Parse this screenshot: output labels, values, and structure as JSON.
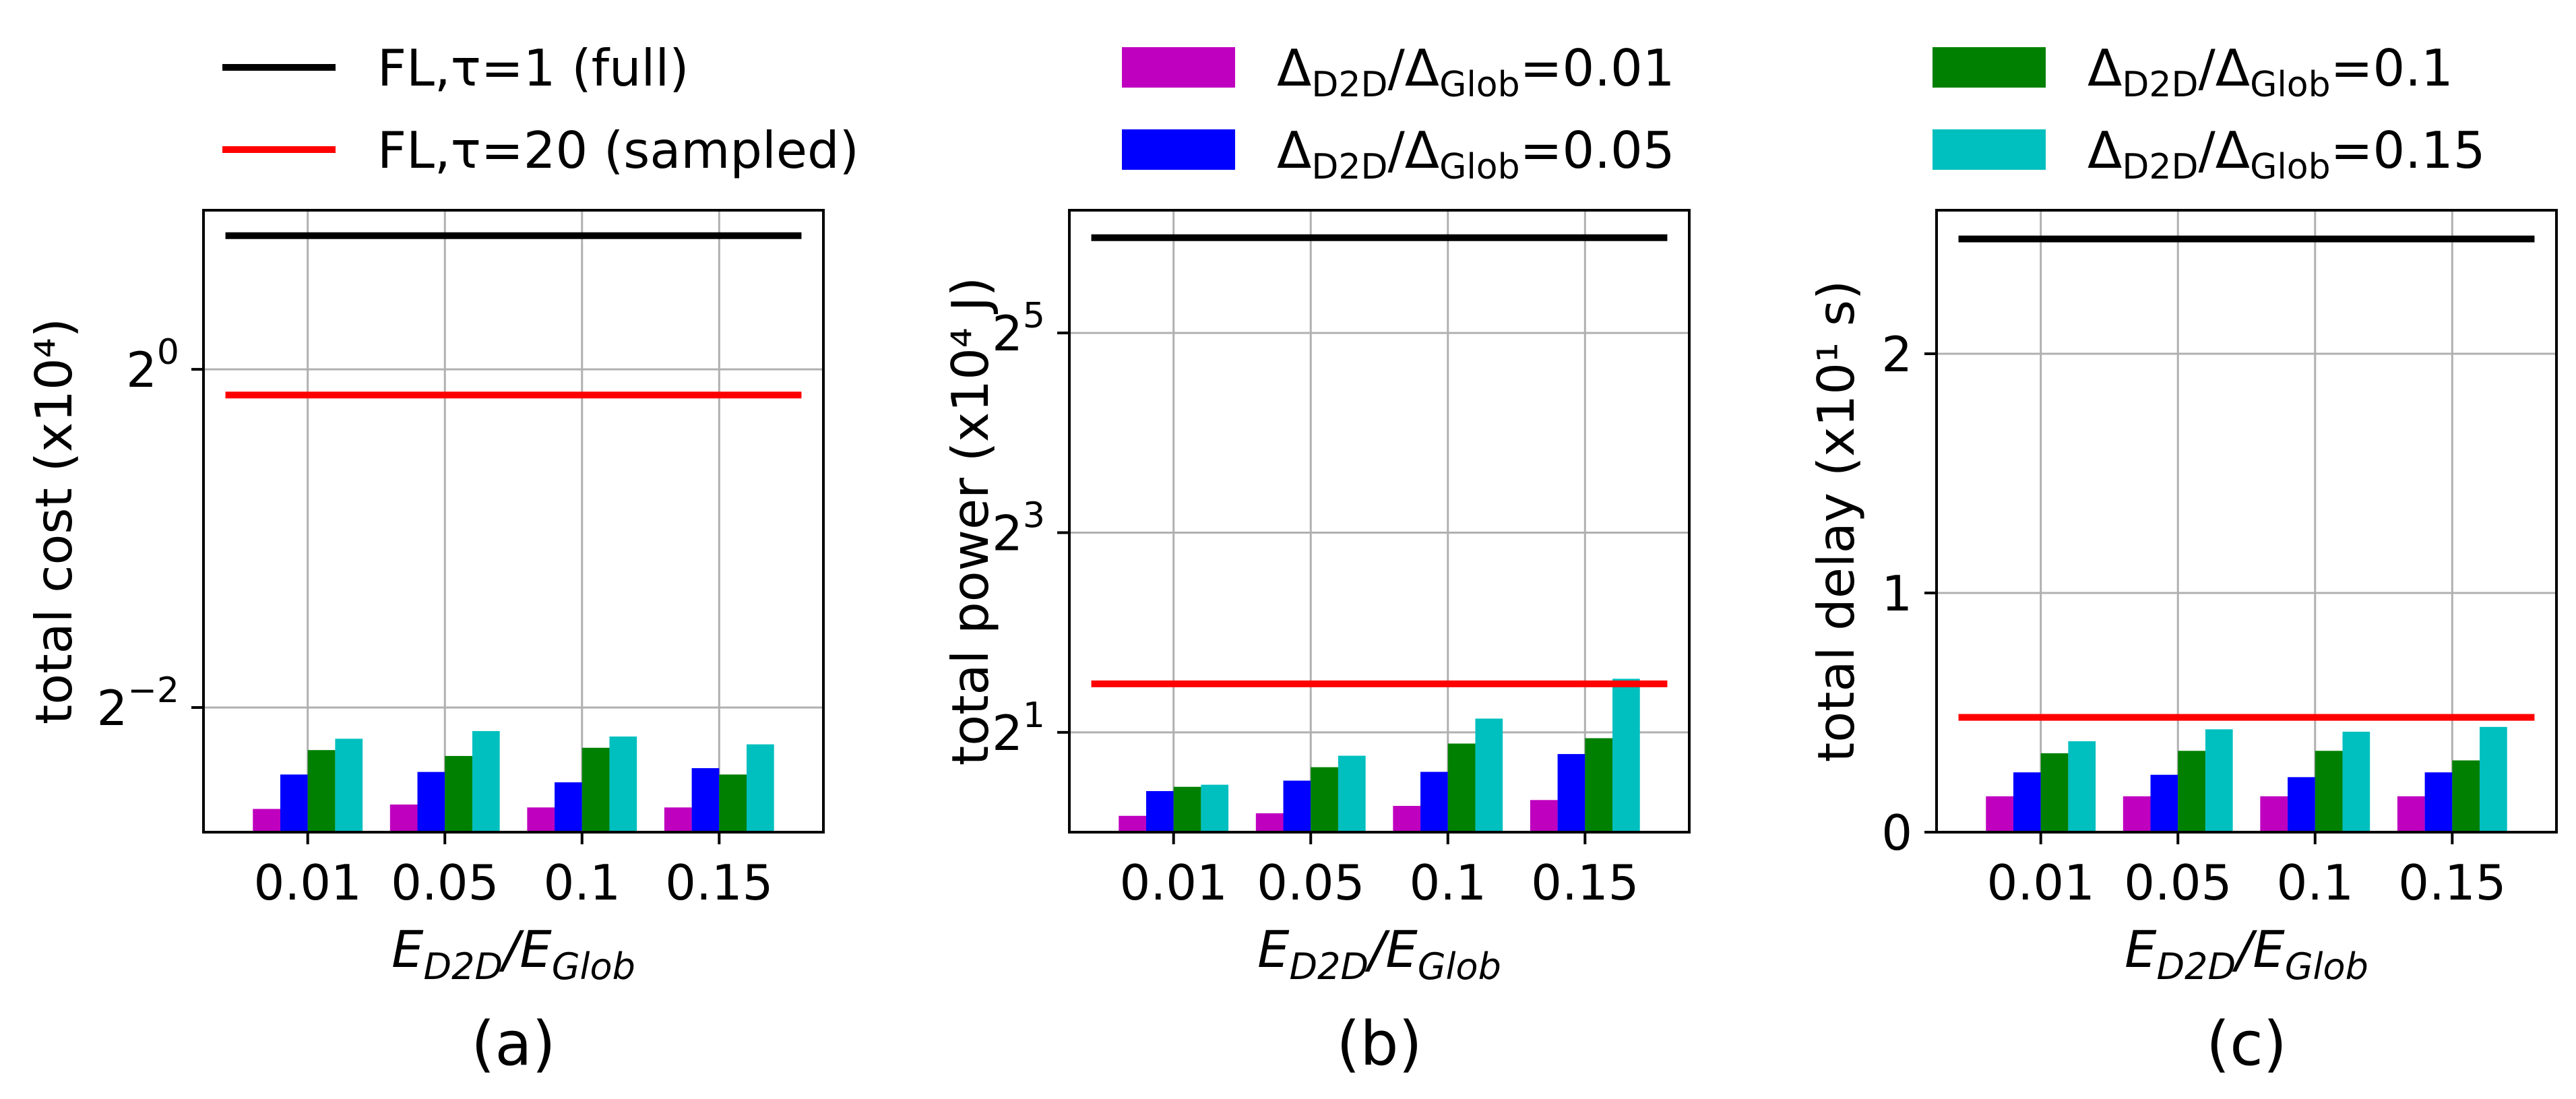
{
  "legend": {
    "lines": [
      {
        "name": "FL,τ=1 (full)",
        "color": "#000000"
      },
      {
        "name": "FL,τ=20 (sampled)",
        "color": "#ff0000"
      }
    ],
    "bars": [
      {
        "ratio": "0.01",
        "color": "#bf00bf"
      },
      {
        "ratio": "0.05",
        "color": "#0000ff"
      },
      {
        "ratio": "0.1",
        "color": "#008000"
      },
      {
        "ratio": "0.15",
        "color": "#00bfbf"
      }
    ]
  },
  "chart_data": [
    {
      "type": "bar",
      "caption": "(a)",
      "ylabel": "total cost (x10⁴)",
      "xlabel": "E_D2D/E_Glob",
      "categories": [
        "0.01",
        "0.05",
        "0.1",
        "0.15"
      ],
      "yscale": "log2",
      "ylim": [
        0.15,
        1.92
      ],
      "yticks": [
        {
          "value": 0.25,
          "base": "2",
          "exp": "−2"
        },
        {
          "value": 1,
          "base": "2",
          "exp": "0"
        }
      ],
      "grid": true,
      "series": [
        {
          "name": "Δ_D2D/Δ_Glob=0.01",
          "values": [
            0.165,
            0.168,
            0.166,
            0.166
          ]
        },
        {
          "name": "Δ_D2D/Δ_Glob=0.05",
          "values": [
            0.19,
            0.192,
            0.184,
            0.195
          ]
        },
        {
          "name": "Δ_D2D/Δ_Glob=0.1",
          "values": [
            0.21,
            0.205,
            0.212,
            0.19
          ]
        },
        {
          "name": "Δ_D2D/Δ_Glob=0.15",
          "values": [
            0.22,
            0.227,
            0.222,
            0.215
          ]
        }
      ],
      "lines": [
        {
          "name": "FL,τ=1 (full)",
          "value": 1.73
        },
        {
          "name": "FL,τ=20 (sampled)",
          "value": 0.9
        }
      ]
    },
    {
      "type": "bar",
      "caption": "(b)",
      "ylabel": "total power (x10⁴ J)",
      "xlabel": "E_D2D/E_Glob",
      "categories": [
        "0.01",
        "0.05",
        "0.1",
        "0.15"
      ],
      "yscale": "log2",
      "ylim": [
        1.0,
        75
      ],
      "yticks": [
        {
          "value": 2,
          "base": "2",
          "exp": "1"
        },
        {
          "value": 8,
          "base": "2",
          "exp": "3"
        },
        {
          "value": 32,
          "base": "2",
          "exp": "5"
        }
      ],
      "grid": true,
      "series": [
        {
          "name": "Δ_D2D/Δ_Glob=0.01",
          "values": [
            1.12,
            1.14,
            1.2,
            1.25
          ]
        },
        {
          "name": "Δ_D2D/Δ_Glob=0.05",
          "values": [
            1.33,
            1.43,
            1.52,
            1.72
          ]
        },
        {
          "name": "Δ_D2D/Δ_Glob=0.1",
          "values": [
            1.37,
            1.57,
            1.85,
            1.92
          ]
        },
        {
          "name": "Δ_D2D/Δ_Glob=0.15",
          "values": [
            1.39,
            1.7,
            2.2,
            2.9
          ]
        }
      ],
      "lines": [
        {
          "name": "FL,τ=1 (full)",
          "value": 62
        },
        {
          "name": "FL,τ=20 (sampled)",
          "value": 2.8
        }
      ]
    },
    {
      "type": "bar",
      "caption": "(c)",
      "ylabel": "total delay (x10¹ s)",
      "xlabel": "E_D2D/E_Glob",
      "categories": [
        "0.01",
        "0.05",
        "0.1",
        "0.15"
      ],
      "yscale": "linear",
      "ylim": [
        0,
        2.6
      ],
      "yticks": [
        {
          "value": 0,
          "base": "0",
          "exp": ""
        },
        {
          "value": 1,
          "base": "1",
          "exp": ""
        },
        {
          "value": 2,
          "base": "2",
          "exp": ""
        }
      ],
      "grid": true,
      "series": [
        {
          "name": "Δ_D2D/Δ_Glob=0.01",
          "values": [
            0.15,
            0.15,
            0.15,
            0.15
          ]
        },
        {
          "name": "Δ_D2D/Δ_Glob=0.05",
          "values": [
            0.25,
            0.24,
            0.23,
            0.25
          ]
        },
        {
          "name": "Δ_D2D/Δ_Glob=0.1",
          "values": [
            0.33,
            0.34,
            0.34,
            0.3
          ]
        },
        {
          "name": "Δ_D2D/Δ_Glob=0.15",
          "values": [
            0.38,
            0.43,
            0.42,
            0.44
          ]
        }
      ],
      "lines": [
        {
          "name": "FL,τ=1 (full)",
          "value": 2.48
        },
        {
          "name": "FL,τ=20 (sampled)",
          "value": 0.48
        }
      ]
    }
  ]
}
